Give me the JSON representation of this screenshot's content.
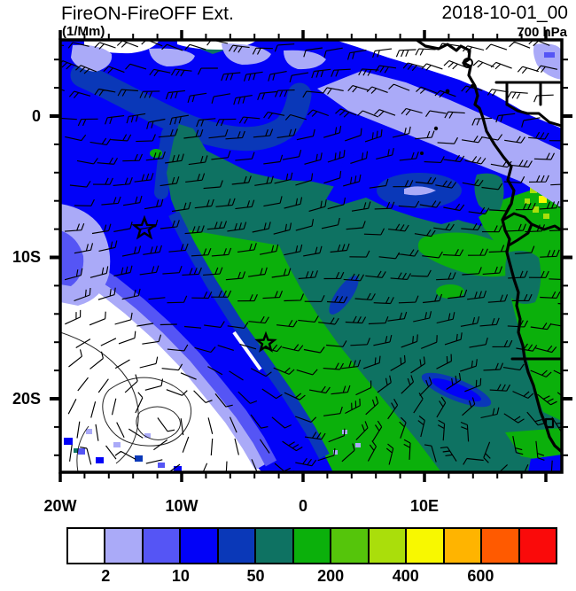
{
  "header": {
    "title": "FireON-FireOFF Ext.",
    "units": "(1/Mm)",
    "datetime": "2018-10-01_00",
    "level": "700 hPa"
  },
  "axes": {
    "x_ticklabels": [
      "20W",
      "10W",
      "0",
      "10E"
    ],
    "y_ticklabels": [
      "0",
      "10S",
      "20S"
    ]
  },
  "colorbar": {
    "labels": [
      "2",
      "10",
      "50",
      "200",
      "400",
      "600"
    ],
    "boundary_indices": [
      1,
      3,
      5,
      7,
      9,
      11
    ],
    "colors": [
      "#ffffff",
      "#aaaaf8",
      "#5555f5",
      "#0202f8",
      "#0a38b8",
      "#0e7262",
      "#0bb00b",
      "#55c50b",
      "#aade0b",
      "#f8f800",
      "#ffb400",
      "#ff5a00",
      "#fa0a0a"
    ]
  },
  "palette": {
    "white": "#ffffff",
    "lavender": "#aaaaf8",
    "blue_medium": "#5555f5",
    "blue": "#0202f8",
    "navy": "#0a38b8",
    "teal": "#0e7262",
    "green": "#0bb00b",
    "green_mid": "#55c50b",
    "green_yellow": "#aade0b",
    "yellow": "#f8f800",
    "orange": "#ffb400",
    "orange_red": "#ff5a00",
    "red": "#fa0a0a",
    "ink": "#000000"
  },
  "chart_data": {
    "type": "heatmap",
    "title": "FireON-FireOFF Ext.",
    "units": "1/Mm",
    "valid_time": "2018-10-01_00",
    "pressure_level": "700 hPa",
    "x_axis": {
      "label": "longitude",
      "ticks": [
        "20W",
        "10W",
        "0",
        "10E"
      ],
      "range_deg": [
        -20,
        21.3
      ],
      "minor_tick_step_deg": 2
    },
    "y_axis": {
      "label": "latitude",
      "ticks": [
        "0",
        "10S",
        "20S"
      ],
      "range_deg": [
        5.4,
        -25.3
      ],
      "minor_tick_step_deg": 2
    },
    "color_scale": {
      "levels": [
        2,
        5,
        10,
        20,
        50,
        100,
        200,
        300,
        400,
        500,
        600,
        700
      ],
      "labeled_levels": [
        2,
        10,
        50,
        200,
        400,
        600
      ],
      "colors": [
        "#ffffff",
        "#aaaaf8",
        "#5555f5",
        "#0202f8",
        "#0a38b8",
        "#0e7262",
        "#0bb00b",
        "#55c50b",
        "#aade0b",
        "#f8f800",
        "#ffb400",
        "#ff5a00",
        "#fa0a0a"
      ],
      "legend_position": "bottom"
    },
    "overlays": [
      "wind barbs",
      "coastline of west/central Africa",
      "country borders",
      "contour lines in low-value region",
      "two open star markers"
    ],
    "markers": [
      {
        "symbol": "star",
        "approx_lon_deg": -13.1,
        "approx_lat_deg": -8.0
      },
      {
        "symbol": "star",
        "approx_lon_deg": -3.1,
        "approx_lat_deg": -16.0
      }
    ],
    "features": [
      {
        "region": "north and northwest of domain",
        "value_band": "10-50 (blue shades)"
      },
      {
        "region": "central and eastern domain",
        "value_band": "50-100 (dark teal)"
      },
      {
        "region": "diagonal band NW-to-SE and near Angola coast",
        "value_band": "100-200 (green)"
      },
      {
        "region": "southwest corner",
        "value_band": "below 2 (white, weak circulation contours)"
      },
      {
        "region": "small coastal patches near 10E",
        "value_band": "200-500 (yellow-green to yellow)"
      }
    ]
  }
}
